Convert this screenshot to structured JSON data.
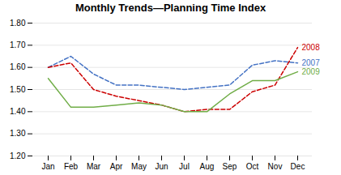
{
  "chart_data": {
    "type": "line",
    "title": "Monthly Trends—Planning Time Index",
    "categories": [
      "Jan",
      "Feb",
      "Mar",
      "Apr",
      "May",
      "Jun",
      "Jul",
      "Aug",
      "Sep",
      "Oct",
      "Nov",
      "Dec"
    ],
    "series": [
      {
        "name": "2007",
        "color": "#4472C4",
        "line_style": "dashed",
        "values": [
          1.6,
          1.65,
          1.57,
          1.52,
          1.52,
          1.51,
          1.5,
          1.51,
          1.52,
          1.61,
          1.63,
          1.62
        ]
      },
      {
        "name": "2008",
        "color": "#CC0000",
        "line_style": "dashed",
        "values": [
          1.6,
          1.62,
          1.5,
          1.47,
          1.45,
          1.43,
          1.4,
          1.41,
          1.41,
          1.49,
          1.52,
          1.69
        ]
      },
      {
        "name": "2009",
        "color": "#70AD47",
        "line_style": "solid",
        "values": [
          1.55,
          1.42,
          1.42,
          1.43,
          1.44,
          1.43,
          1.4,
          1.4,
          1.48,
          1.54,
          1.54,
          1.58
        ]
      }
    ],
    "ylim": [
      1.2,
      1.8
    ],
    "yticks": [
      {
        "value": 1.2,
        "label": "1.20"
      },
      {
        "value": 1.3,
        "label": "1.30"
      },
      {
        "value": 1.4,
        "label": "1.40"
      },
      {
        "value": 1.5,
        "label": "1.50"
      },
      {
        "value": 1.6,
        "label": "1.60"
      },
      {
        "value": 1.7,
        "label": "1.70"
      },
      {
        "value": 1.8,
        "label": "1.80"
      }
    ],
    "grid": true
  }
}
